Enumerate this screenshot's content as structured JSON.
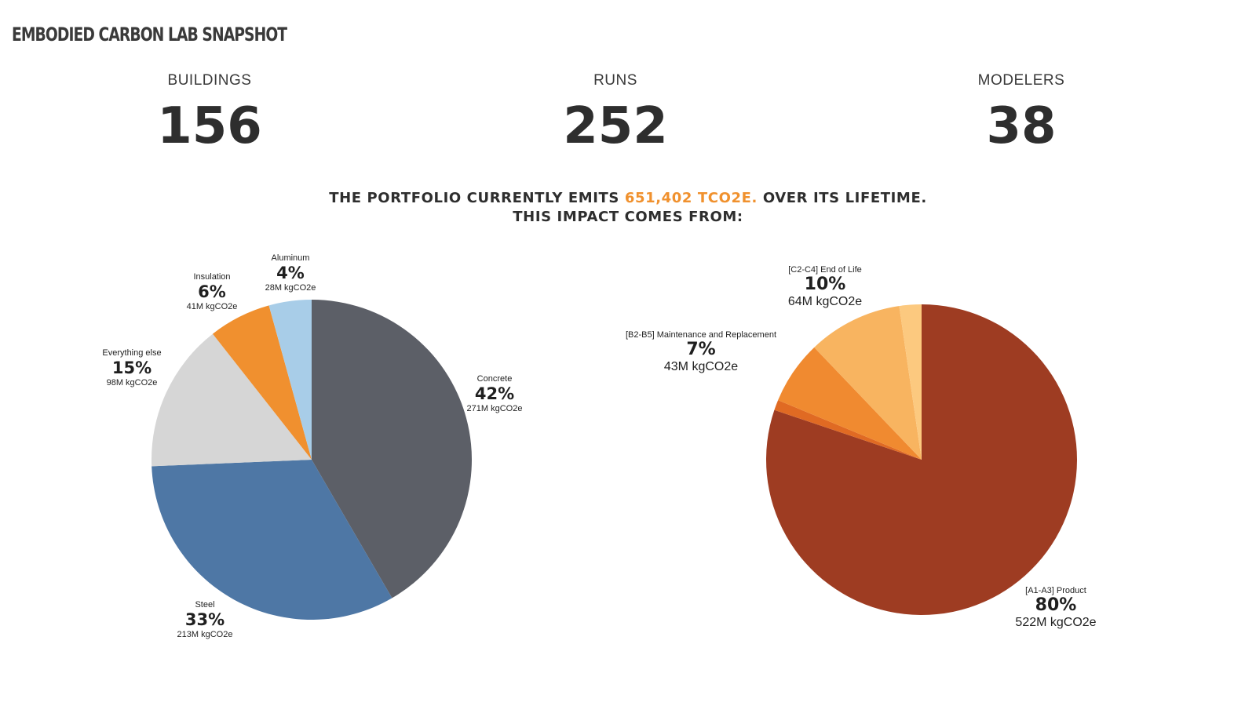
{
  "title": "EMBODIED CARBON LAB SNAPSHOT",
  "stats": [
    {
      "label": "BUILDINGS",
      "value": "156"
    },
    {
      "label": "RUNS",
      "value": "252"
    },
    {
      "label": "MODELERS",
      "value": "38"
    }
  ],
  "headline": {
    "line1_prefix": "THE PORTFOLIO CURRENTLY EMITS ",
    "line1_accent": "651,402 TCO2E.",
    "line1_suffix": " OVER ITS LIFETIME.",
    "line2": "THIS IMPACT COMES FROM:"
  },
  "colors": {
    "accent": "#f0912e"
  },
  "chart_data": [
    {
      "type": "pie",
      "title": "",
      "slices": [
        {
          "name": "Concrete",
          "percent": "42%",
          "amount": "271M kgCO2e",
          "value": 271,
          "color": "#5c5f67"
        },
        {
          "name": "Steel",
          "percent": "33%",
          "amount": "213M kgCO2e",
          "value": 213,
          "color": "#4e77a5"
        },
        {
          "name": "Everything else",
          "percent": "15%",
          "amount": "98M kgCO2e",
          "value": 98,
          "color": "#d6d6d6"
        },
        {
          "name": "Insulation",
          "percent": "6%",
          "amount": "41M kgCO2e",
          "value": 41,
          "color": "#f0902f"
        },
        {
          "name": "Aluminum",
          "percent": "4%",
          "amount": "28M kgCO2e",
          "value": 28,
          "color": "#a8cde8"
        }
      ]
    },
    {
      "type": "pie",
      "title": "",
      "slices": [
        {
          "name": "[A1-A3] Product",
          "percent": "80%",
          "amount": "522M kgCO2e",
          "value": 522,
          "color": "#9e3c22",
          "labeled": true
        },
        {
          "name": "",
          "percent": "",
          "amount": "",
          "value": 7,
          "color": "#e06a23",
          "labeled": false
        },
        {
          "name": "[B2-B5] Maintenance and Replacement",
          "percent": "7%",
          "amount": "43M kgCO2e",
          "value": 43,
          "color": "#f08a30",
          "labeled": true
        },
        {
          "name": "[C2-C4] End of Life",
          "percent": "10%",
          "amount": "64M kgCO2e",
          "value": 64,
          "color": "#f8b460",
          "labeled": true
        },
        {
          "name": "",
          "percent": "",
          "amount": "",
          "value": 15,
          "color": "#fcc97f",
          "labeled": false
        }
      ]
    }
  ]
}
